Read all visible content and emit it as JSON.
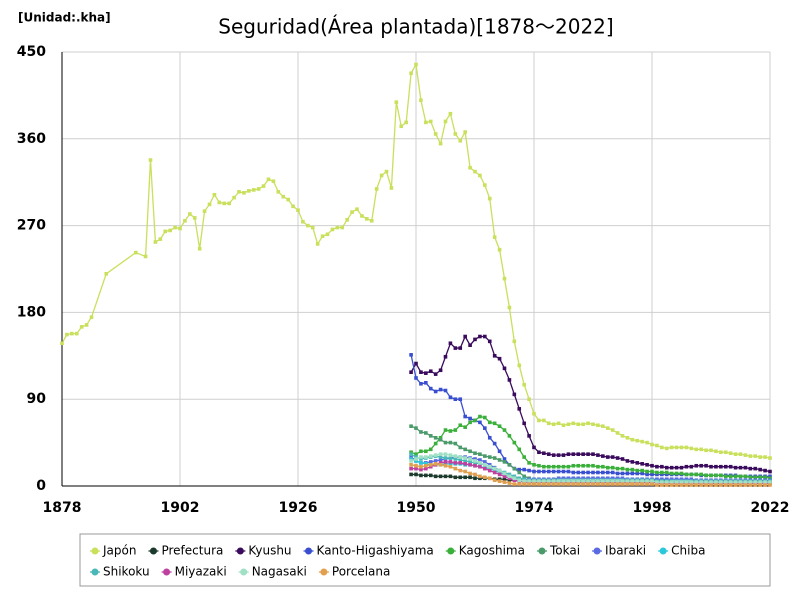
{
  "chart_data": {
    "type": "line",
    "title": "Seguridad(Área plantada)[1878～2022]",
    "unit": "[Unidad:.kha]",
    "xlim": [
      1878,
      2022
    ],
    "xticks": [
      1878,
      1902,
      1926,
      1950,
      1974,
      1998,
      2022
    ],
    "ylim": [
      0,
      450
    ],
    "yticks": [
      0,
      90,
      180,
      270,
      360,
      450
    ],
    "grid": true,
    "legend": "bottom",
    "x": [
      1949,
      1950,
      1951,
      1952,
      1953,
      1954,
      1955,
      1956,
      1957,
      1958,
      1959,
      1960,
      1961,
      1962,
      1963,
      1964,
      1965,
      1966,
      1967,
      1968,
      1969,
      1970,
      1971,
      1972,
      1973,
      1974,
      1975,
      1976,
      1977,
      1978,
      1979,
      1980,
      1981,
      1982,
      1983,
      1984,
      1985,
      1986,
      1987,
      1988,
      1989,
      1990,
      1991,
      1992,
      1993,
      1994,
      1995,
      1996,
      1997,
      1998,
      1999,
      2000,
      2001,
      2002,
      2003,
      2004,
      2005,
      2006,
      2007,
      2008,
      2009,
      2010,
      2011,
      2012,
      2013,
      2014,
      2015,
      2016,
      2017,
      2018,
      2019,
      2020,
      2021,
      2022
    ],
    "series": [
      {
        "name": "Japón",
        "color": "#c8e05c",
        "x": [
          1878,
          1879,
          1880,
          1881,
          1882,
          1883,
          1884,
          1887,
          1893,
          1895,
          1896,
          1897,
          1898,
          1899,
          1900,
          1901,
          1902,
          1903,
          1904,
          1905,
          1906,
          1907,
          1908,
          1909,
          1910,
          1911,
          1912,
          1913,
          1914,
          1915,
          1916,
          1917,
          1918,
          1919,
          1920,
          1921,
          1922,
          1923,
          1924,
          1925,
          1926,
          1927,
          1928,
          1929,
          1930,
          1931,
          1932,
          1933,
          1934,
          1935,
          1936,
          1937,
          1938,
          1939,
          1940,
          1941,
          1942,
          1943,
          1944,
          1945,
          1946,
          1947,
          1948,
          1949,
          1950,
          1951,
          1952,
          1953,
          1954,
          1955,
          1956,
          1957,
          1958,
          1959,
          1960,
          1961,
          1962,
          1963,
          1964,
          1965,
          1966,
          1967,
          1968,
          1969,
          1970,
          1971,
          1972,
          1973,
          1974,
          1975,
          1976,
          1977,
          1978,
          1979,
          1980,
          1981,
          1982,
          1983,
          1984,
          1985,
          1986,
          1987,
          1988,
          1989,
          1990,
          1991,
          1992,
          1993,
          1994,
          1995,
          1996,
          1997,
          1998,
          1999,
          2000,
          2001,
          2002,
          2003,
          2004,
          2005,
          2006,
          2007,
          2008,
          2009,
          2010,
          2011,
          2012,
          2013,
          2014,
          2015,
          2016,
          2017,
          2018,
          2019,
          2020,
          2021,
          2022
        ],
        "values": [
          148,
          157,
          158,
          158,
          165,
          167,
          175,
          220,
          242,
          238,
          338,
          253,
          256,
          264,
          265,
          268,
          267,
          275,
          282,
          278,
          246,
          285,
          292,
          302,
          294,
          293,
          293,
          299,
          305,
          304,
          306,
          307,
          308,
          311,
          318,
          316,
          305,
          300,
          297,
          290,
          286,
          274,
          270,
          268,
          251,
          259,
          261,
          266,
          268,
          268,
          276,
          284,
          287,
          280,
          277,
          275,
          308,
          322,
          326,
          309,
          398,
          373,
          377,
          428,
          437,
          400,
          377,
          378,
          365,
          355,
          378,
          386,
          365,
          358,
          367,
          330,
          326,
          322,
          312,
          298,
          258,
          245,
          215,
          185,
          150,
          125,
          105,
          90,
          75,
          68,
          68,
          65,
          64,
          65,
          63,
          64,
          65,
          64,
          64,
          65,
          64,
          63,
          62,
          60,
          58,
          55,
          52,
          50,
          48,
          47,
          46,
          45,
          43,
          42,
          40,
          39,
          40,
          40,
          40,
          40,
          39,
          38,
          38,
          37,
          37,
          36,
          35,
          35,
          34,
          33,
          33,
          32,
          31,
          31,
          30,
          30,
          29
        ]
      },
      {
        "name": "Prefectura",
        "color": "#1b3a2c",
        "values": [
          12,
          12,
          11,
          11,
          11,
          10,
          10,
          10,
          10,
          9,
          9,
          9,
          9,
          8,
          8,
          8,
          8,
          7,
          7,
          7,
          6,
          6,
          5,
          5,
          5,
          5,
          5,
          5,
          5,
          5,
          5,
          5,
          5,
          5,
          5,
          5,
          5,
          5,
          5,
          5,
          5,
          5,
          5,
          5,
          5,
          5,
          5,
          5,
          5,
          5,
          4,
          4,
          4,
          4,
          4,
          4,
          4,
          4,
          4,
          4,
          4,
          4,
          4,
          4,
          4,
          4,
          4,
          4,
          4,
          4,
          4,
          4,
          4,
          4
        ]
      },
      {
        "name": "Kyushu",
        "color": "#3a0a5c",
        "values": [
          118,
          127,
          118,
          117,
          119,
          116,
          120,
          134,
          148,
          143,
          143,
          155,
          146,
          152,
          155,
          155,
          150,
          135,
          132,
          122,
          110,
          95,
          80,
          65,
          52,
          40,
          35,
          34,
          33,
          32,
          32,
          32,
          33,
          33,
          33,
          33,
          33,
          33,
          32,
          31,
          30,
          30,
          29,
          28,
          26,
          25,
          24,
          23,
          22,
          21,
          20,
          20,
          19,
          19,
          19,
          19,
          20,
          20,
          21,
          21,
          21,
          20,
          20,
          20,
          20,
          20,
          19,
          19,
          19,
          18,
          18,
          17,
          16,
          15
        ]
      },
      {
        "name": "Kanto-Higashiyama",
        "color": "#3a4fd0",
        "values": [
          136,
          112,
          106,
          107,
          101,
          98,
          100,
          99,
          92,
          90,
          90,
          72,
          70,
          68,
          66,
          60,
          50,
          44,
          36,
          28,
          22,
          18,
          17,
          17,
          16,
          15,
          15,
          15,
          15,
          15,
          15,
          15,
          15,
          14,
          14,
          14,
          14,
          14,
          14,
          14,
          14,
          14,
          13,
          13,
          13,
          13,
          13,
          13,
          12,
          12,
          12,
          12,
          12,
          12,
          12,
          12,
          12,
          12,
          12,
          11,
          11,
          11,
          11,
          11,
          11,
          11,
          11,
          10,
          10,
          10,
          10,
          10,
          10,
          10
        ]
      },
      {
        "name": "Kagoshima",
        "color": "#3ab03a",
        "values": [
          35,
          33,
          36,
          36,
          38,
          44,
          50,
          58,
          57,
          58,
          63,
          61,
          66,
          68,
          72,
          71,
          66,
          65,
          62,
          58,
          52,
          45,
          38,
          30,
          24,
          22,
          21,
          20,
          20,
          20,
          20,
          20,
          20,
          21,
          21,
          21,
          21,
          21,
          20,
          20,
          19,
          19,
          18,
          18,
          17,
          17,
          16,
          16,
          15,
          15,
          14,
          14,
          14,
          13,
          13,
          13,
          12,
          12,
          12,
          12,
          11,
          11,
          11,
          11,
          10,
          10,
          10,
          10,
          10,
          9,
          9,
          9,
          9,
          8
        ]
      },
      {
        "name": "Tokai",
        "color": "#4a9a6a",
        "values": [
          62,
          60,
          56,
          55,
          52,
          50,
          48,
          45,
          45,
          44,
          40,
          38,
          36,
          34,
          33,
          31,
          30,
          29,
          27,
          25,
          22,
          18,
          14,
          10,
          8,
          6,
          6,
          6,
          6,
          6,
          6,
          6,
          6,
          6,
          6,
          6,
          6,
          6,
          6,
          6,
          6,
          6,
          6,
          6,
          6,
          6,
          6,
          6,
          6,
          6,
          6,
          6,
          6,
          5,
          5,
          5,
          5,
          5,
          5,
          5,
          5,
          5,
          5,
          5,
          5,
          5,
          5,
          5,
          5,
          5,
          5,
          5,
          5,
          5
        ]
      },
      {
        "name": "Ibaraki",
        "color": "#5a6ae0",
        "values": [
          30,
          26,
          24,
          24,
          25,
          26,
          27,
          28,
          29,
          30,
          30,
          30,
          29,
          28,
          27,
          25,
          22,
          19,
          16,
          13,
          10,
          8,
          7,
          7,
          7,
          7,
          7,
          7,
          7,
          7,
          8,
          8,
          8,
          8,
          8,
          8,
          8,
          8,
          8,
          8,
          8,
          8,
          8,
          8,
          7,
          7,
          7,
          7,
          7,
          7,
          7,
          7,
          7,
          7,
          7,
          7,
          7,
          7,
          6,
          6,
          6,
          6,
          6,
          6,
          6,
          6,
          6,
          6,
          6,
          6,
          6,
          6,
          6,
          6
        ]
      },
      {
        "name": "Chiba",
        "color": "#2ac8d8",
        "values": [
          28,
          26,
          24,
          23,
          22,
          22,
          22,
          23,
          23,
          23,
          23,
          22,
          22,
          21,
          20,
          19,
          18,
          16,
          14,
          12,
          10,
          8,
          6,
          5,
          4,
          4,
          4,
          4,
          4,
          4,
          4,
          4,
          4,
          4,
          4,
          4,
          4,
          4,
          4,
          4,
          4,
          4,
          4,
          4,
          4,
          4,
          4,
          4,
          4,
          4,
          4,
          4,
          4,
          4,
          4,
          4,
          4,
          4,
          4,
          4,
          4,
          3,
          3,
          3,
          3,
          3,
          3,
          3,
          3,
          3,
          3,
          3,
          3,
          3
        ]
      },
      {
        "name": "Shikoku",
        "color": "#4ab8b8",
        "values": [
          33,
          30,
          28,
          29,
          30,
          31,
          30,
          29,
          29,
          28,
          27,
          26,
          25,
          24,
          23,
          22,
          20,
          18,
          16,
          14,
          12,
          10,
          8,
          7,
          6,
          6,
          6,
          6,
          6,
          6,
          6,
          6,
          6,
          6,
          6,
          6,
          6,
          6,
          6,
          6,
          6,
          6,
          6,
          6,
          6,
          6,
          6,
          6,
          6,
          6,
          5,
          5,
          5,
          5,
          5,
          5,
          5,
          5,
          5,
          5,
          5,
          5,
          5,
          5,
          5,
          5,
          5,
          5,
          5,
          5,
          5,
          5,
          5,
          5
        ]
      },
      {
        "name": "Miyazaki",
        "color": "#c040a0",
        "values": [
          18,
          18,
          17,
          18,
          20,
          22,
          24,
          25,
          25,
          24,
          24,
          23,
          22,
          21,
          20,
          18,
          16,
          14,
          12,
          10,
          8,
          6,
          5,
          4,
          4,
          4,
          4,
          4,
          4,
          4,
          4,
          4,
          4,
          4,
          4,
          4,
          4,
          4,
          4,
          4,
          4,
          4,
          4,
          4,
          4,
          4,
          4,
          4,
          4,
          4,
          3,
          3,
          3,
          3,
          3,
          3,
          3,
          3,
          3,
          3,
          3,
          3,
          3,
          3,
          3,
          3,
          3,
          3,
          3,
          3,
          3,
          3,
          3,
          3
        ]
      },
      {
        "name": "Nagasaki",
        "color": "#a0e0c4",
        "values": [
          26,
          28,
          30,
          30,
          31,
          32,
          33,
          33,
          32,
          31,
          30,
          29,
          28,
          26,
          24,
          22,
          20,
          18,
          16,
          13,
          10,
          8,
          6,
          5,
          5,
          5,
          5,
          5,
          5,
          5,
          5,
          5,
          5,
          5,
          5,
          5,
          5,
          5,
          5,
          5,
          5,
          5,
          5,
          5,
          5,
          5,
          5,
          5,
          5,
          5,
          4,
          4,
          4,
          4,
          4,
          4,
          4,
          4,
          4,
          4,
          4,
          4,
          4,
          4,
          4,
          4,
          4,
          4,
          4,
          4,
          4,
          4,
          4,
          4
        ]
      },
      {
        "name": "Porcelana",
        "color": "#e0a050",
        "values": [
          22,
          21,
          20,
          21,
          22,
          23,
          22,
          21,
          20,
          18,
          16,
          15,
          13,
          12,
          10,
          9,
          8,
          6,
          5,
          4,
          3,
          2,
          2,
          2,
          2,
          2,
          2,
          2,
          2,
          2,
          2,
          2,
          2,
          2,
          2,
          2,
          2,
          2,
          2,
          2,
          2,
          2,
          2,
          2,
          2,
          2,
          2,
          2,
          2,
          2,
          1,
          1,
          1,
          1,
          1,
          1,
          1,
          1,
          1,
          1,
          1,
          1,
          1,
          1,
          1,
          1,
          1,
          1,
          1,
          1,
          1,
          1,
          1,
          1
        ]
      }
    ]
  }
}
